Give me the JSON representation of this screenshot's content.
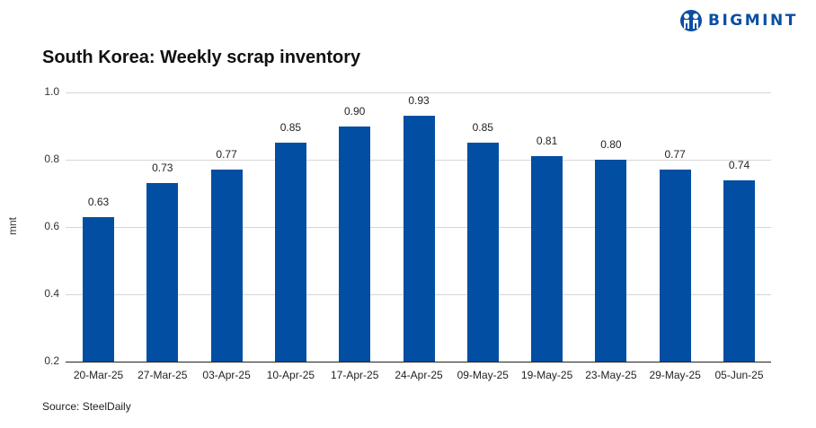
{
  "logo": {
    "text": "BIGMINT",
    "icon": "people-globe-icon",
    "color": "#0b4fa3"
  },
  "chart_data": {
    "type": "bar",
    "title": "South Korea: Weekly scrap inventory",
    "xlabel": "",
    "ylabel": "mnt",
    "ylim": [
      0.2,
      1.0
    ],
    "yticks": [
      "0.2",
      "0.4",
      "0.6",
      "0.8",
      "1.0"
    ],
    "grid": true,
    "legend": "none",
    "bar_color": "#024ea2",
    "categories": [
      "20-Mar-25",
      "27-Mar-25",
      "03-Apr-25",
      "10-Apr-25",
      "17-Apr-25",
      "24-Apr-25",
      "09-May-25",
      "19-May-25",
      "23-May-25",
      "29-May-25",
      "05-Jun-25"
    ],
    "values": [
      0.63,
      0.73,
      0.77,
      0.85,
      0.9,
      0.93,
      0.85,
      0.81,
      0.8,
      0.77,
      0.74
    ],
    "value_labels": [
      "0.63",
      "0.73",
      "0.77",
      "0.85",
      "0.90",
      "0.93",
      "0.85",
      "0.81",
      "0.80",
      "0.77",
      "0.74"
    ]
  },
  "source": "Source: SteelDaily"
}
